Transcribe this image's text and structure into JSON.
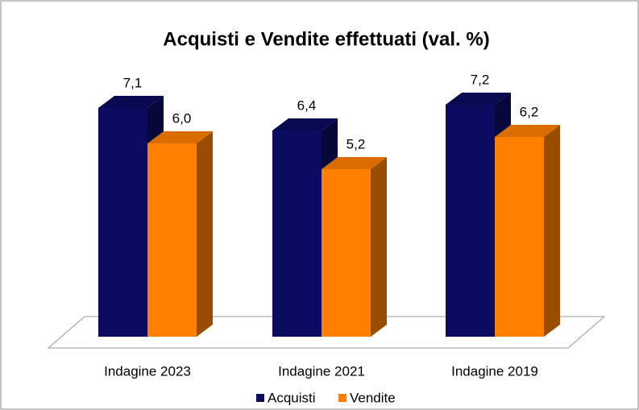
{
  "chart_data": {
    "type": "bar3d",
    "title": "Acquisti e Vendite effettuati (val. %)",
    "categories": [
      "Indagine 2023",
      "Indagine 2021",
      "Indagine 2019"
    ],
    "series": [
      {
        "name": "Acquisti",
        "color": "#0b0b60",
        "values": [
          7.1,
          6.4,
          7.2
        ],
        "value_labels": [
          "7,1",
          "6,4",
          "7,2"
        ]
      },
      {
        "name": "Vendite",
        "color": "#ff8000",
        "values": [
          6.0,
          5.2,
          6.2
        ],
        "value_labels": [
          "6,0",
          "5,2",
          "6,2"
        ]
      }
    ],
    "legend": "bottom"
  }
}
